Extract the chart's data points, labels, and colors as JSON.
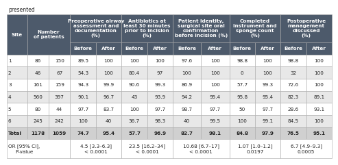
{
  "title_above": "presented",
  "header_texts": [
    "Site",
    "Number\nof patients",
    "Preoperative airway\nassessment and\ndocumentation\n(%)",
    "Antibiotics at\nleast 30 minutes\nprior to incision\n(%)",
    "Patient identity,\nsurgical site oral\nconfirmation\nbefore incision (%)",
    "Completed\ninstrument and\nsponge count\n(%)",
    "Postoperative\nmanagement\ndiscussed\n(%)"
  ],
  "rows": [
    [
      "1",
      "86",
      "150",
      "89.5",
      "100",
      "100",
      "100",
      "97.6",
      "100",
      "98.8",
      "100",
      "98.8",
      "100"
    ],
    [
      "2",
      "46",
      "67",
      "54.3",
      "100",
      "80.4",
      "97",
      "100",
      "100",
      "0",
      "100",
      "32",
      "100"
    ],
    [
      "3",
      "161",
      "159",
      "94.3",
      "99.9",
      "90.6",
      "99.3",
      "86.9",
      "100",
      "57.7",
      "99.3",
      "72.6",
      "100"
    ],
    [
      "4",
      "560",
      "397",
      "90.1",
      "96.7",
      "43",
      "93.9",
      "94.2",
      "95.4",
      "95.8",
      "95.4",
      "82.3",
      "89.1"
    ],
    [
      "5",
      "80",
      "44",
      "97.7",
      "83.7",
      "100",
      "97.7",
      "98.7",
      "97.7",
      "50",
      "97.7",
      "28.6",
      "93.1"
    ],
    [
      "6",
      "245",
      "242",
      "100",
      "40",
      "36.7",
      "98.3",
      "40",
      "99.5",
      "100",
      "99.1",
      "84.5",
      "100"
    ],
    [
      "Total",
      "1178",
      "1059",
      "74.7",
      "95.4",
      "57.7",
      "96.9",
      "82.7",
      "98.1",
      "84.8",
      "97.9",
      "76.5",
      "95.1"
    ]
  ],
  "footer_label": "OR [95% CI],\nP-value",
  "footer_values": [
    "4.5 [3.3–6.3]\n< 0.0001",
    "23.5 [16.2–34]\n< 0.0001",
    "10.68 [6.7–17]\n< 0.0001",
    "1.07 [1.0–1.2]\n0.0197",
    "6.7 [4.9–9.3]\n0.0005"
  ],
  "header_bg": "#4d5a6b",
  "header_text": "#ffffff",
  "subheader_bg": "#4d5a6b",
  "subheader_text": "#ffffff",
  "row_bg_alt": "#e8e8e8",
  "row_bg_plain": "#ffffff",
  "total_bg": "#d0d0d0",
  "footer_bg": "#ffffff",
  "border_color": "#aaaaaa",
  "data_text": "#222222",
  "font_size": 5.2,
  "header_font_size": 5.2
}
